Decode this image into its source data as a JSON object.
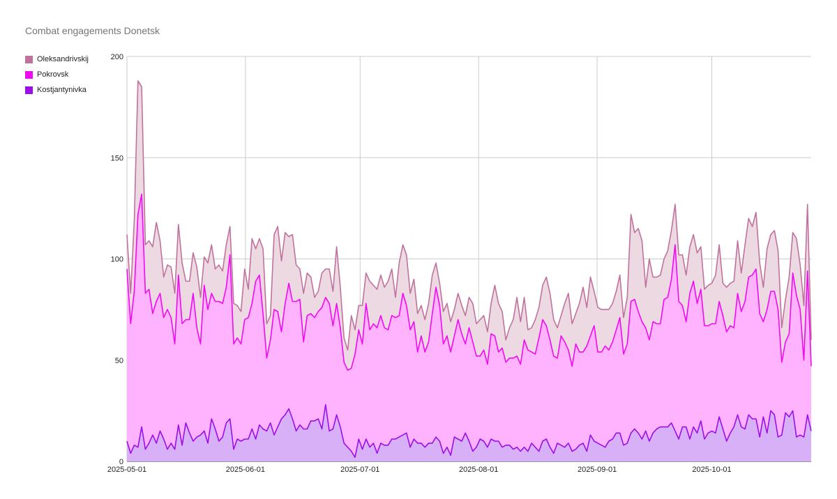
{
  "chart_data": {
    "type": "area",
    "title": "Combat engagements Donetsk",
    "xlabel": "",
    "ylabel": "",
    "ylim": [
      0,
      200
    ],
    "y_ticks": [
      0,
      50,
      100,
      150,
      200
    ],
    "x_ticks": [
      "2025-05-01",
      "2025-06-01",
      "2025-07-01",
      "2025-08-01",
      "2025-09-01",
      "2025-10-01"
    ],
    "x_start": "2025-05-01",
    "x_end": "2025-10-27",
    "stacked": true,
    "grid": true,
    "legend_position": "top-left",
    "series": [
      {
        "name": "Kostjantynivka",
        "color": "#9b0ee8",
        "fill": "#d8b0f8",
        "values": [
          10,
          4,
          8,
          7,
          17,
          6,
          9,
          13,
          9,
          15,
          11,
          6,
          9,
          6,
          18,
          8,
          19,
          14,
          10,
          12,
          13,
          15,
          9,
          21,
          16,
          10,
          12,
          19,
          21,
          6,
          11,
          10,
          11,
          11,
          16,
          11,
          18,
          16,
          15,
          19,
          13,
          17,
          21,
          23,
          26,
          21,
          15,
          18,
          16,
          16,
          20,
          20,
          21,
          16,
          28,
          15,
          16,
          23,
          17,
          9,
          7,
          5,
          2,
          11,
          6,
          11,
          7,
          9,
          4,
          9,
          8,
          8,
          11,
          11,
          12,
          13,
          14,
          7,
          11,
          9,
          9,
          7,
          9,
          9,
          12,
          10,
          4,
          7,
          3,
          12,
          11,
          10,
          14,
          10,
          5,
          7,
          11,
          10,
          7,
          11,
          10,
          10,
          7,
          8,
          8,
          6,
          7,
          5,
          7,
          5,
          9,
          7,
          5,
          10,
          11,
          7,
          4,
          9,
          8,
          7,
          9,
          5,
          6,
          8,
          9,
          5,
          13,
          10,
          9,
          8,
          7,
          10,
          11,
          14,
          14,
          8,
          9,
          14,
          16,
          14,
          11,
          15,
          10,
          14,
          16,
          17,
          17,
          17,
          19,
          15,
          11,
          17,
          17,
          11,
          17,
          14,
          20,
          11,
          14,
          15,
          14,
          22,
          16,
          10,
          14,
          17,
          23,
          17,
          16,
          23,
          21,
          21,
          12,
          22,
          14,
          25,
          23,
          12,
          13,
          24,
          22,
          25,
          12,
          13,
          12,
          23,
          15
        ]
      },
      {
        "name": "Pokrovsk",
        "color": "#f00af0",
        "fill": "#ffb3ff",
        "values": [
          85,
          64,
          76,
          115,
          115,
          77,
          76,
          60,
          70,
          68,
          60,
          69,
          62,
          52,
          74,
          60,
          51,
          56,
          73,
          54,
          45,
          72,
          66,
          62,
          63,
          69,
          66,
          67,
          81,
          52,
          50,
          48,
          59,
          60,
          62,
          78,
          74,
          57,
          36,
          41,
          62,
          57,
          43,
          55,
          62,
          58,
          64,
          62,
          43,
          56,
          53,
          51,
          53,
          60,
          53,
          63,
          51,
          55,
          49,
          40,
          38,
          41,
          51,
          54,
          52,
          67,
          58,
          59,
          62,
          63,
          58,
          57,
          61,
          60,
          60,
          70,
          63,
          58,
          58,
          45,
          53,
          47,
          50,
          64,
          74,
          67,
          54,
          55,
          51,
          50,
          59,
          53,
          44,
          56,
          54,
          45,
          41,
          45,
          41,
          52,
          52,
          44,
          49,
          41,
          43,
          45,
          45,
          43,
          53,
          50,
          45,
          46,
          56,
          60,
          56,
          53,
          48,
          42,
          54,
          52,
          46,
          42,
          52,
          46,
          45,
          52,
          49,
          57,
          45,
          46,
          50,
          45,
          48,
          51,
          57,
          45,
          49,
          65,
          64,
          60,
          58,
          51,
          50,
          55,
          52,
          51,
          63,
          64,
          71,
          92,
          68,
          60,
          52,
          72,
          72,
          64,
          65,
          56,
          53,
          53,
          54,
          57,
          56,
          54,
          53,
          49,
          60,
          57,
          63,
          68,
          71,
          74,
          61,
          47,
          61,
          59,
          61,
          63,
          36,
          35,
          41,
          68,
          70,
          62,
          38,
          71,
          32
        ]
      },
      {
        "name": "Oleksandrivskij",
        "color": "#c0729e",
        "fill": "#ecd9e2",
        "values": [
          17,
          15,
          35,
          66,
          53,
          24,
          24,
          33,
          39,
          26,
          20,
          22,
          25,
          25,
          25,
          30,
          19,
          19,
          20,
          30,
          23,
          14,
          23,
          24,
          16,
          18,
          16,
          21,
          14,
          20,
          16,
          16,
          25,
          14,
          32,
          16,
          18,
          32,
          17,
          12,
          37,
          42,
          35,
          35,
          23,
          33,
          18,
          15,
          24,
          21,
          18,
          10,
          10,
          17,
          14,
          17,
          17,
          28,
          20,
          12,
          10,
          26,
          12,
          12,
          19,
          15,
          24,
          19,
          19,
          20,
          20,
          24,
          23,
          10,
          26,
          24,
          25,
          18,
          21,
          19,
          15,
          16,
          19,
          19,
          12,
          11,
          16,
          16,
          15,
          13,
          13,
          14,
          14,
          15,
          19,
          16,
          18,
          17,
          16,
          15,
          25,
          24,
          18,
          11,
          15,
          19,
          29,
          21,
          21,
          10,
          12,
          17,
          15,
          17,
          24,
          23,
          18,
          15,
          10,
          19,
          28,
          21,
          15,
          24,
          32,
          19,
          29,
          17,
          22,
          21,
          18,
          20,
          19,
          19,
          21,
          18,
          23,
          43,
          33,
          41,
          40,
          20,
          40,
          22,
          23,
          24,
          20,
          23,
          24,
          20,
          23,
          25,
          23,
          23,
          23,
          25,
          21,
          18,
          20,
          20,
          24,
          28,
          16,
          22,
          21,
          23,
          26,
          19,
          28,
          29,
          24,
          28,
          25,
          17,
          30,
          28,
          30,
          29,
          17,
          21,
          28,
          20,
          28,
          22,
          27,
          33,
          13
        ]
      }
    ]
  }
}
